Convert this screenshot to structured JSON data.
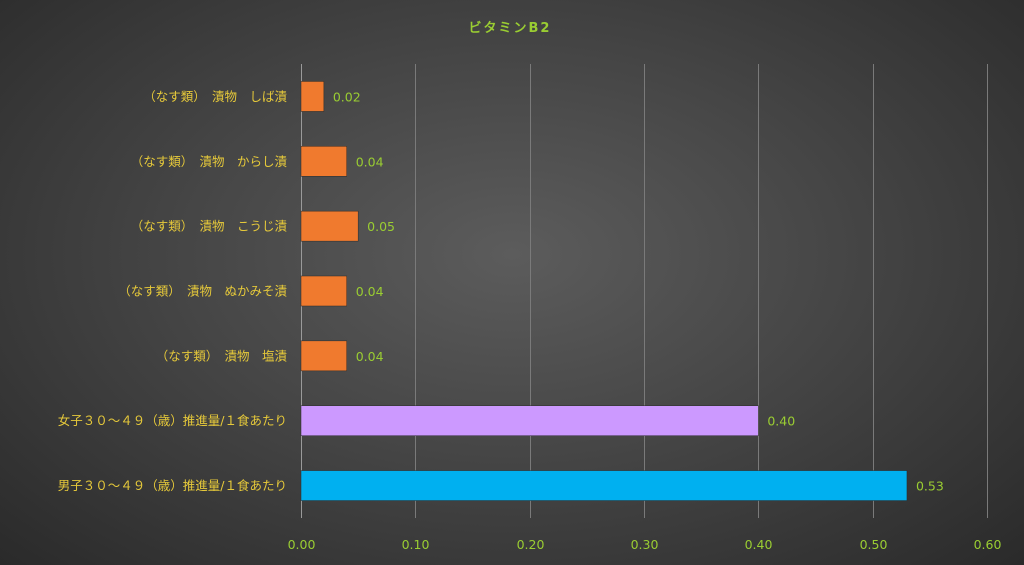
{
  "chart_data": {
    "type": "bar",
    "orientation": "horizontal",
    "title": "ビタミンB2",
    "categories": [
      "（なす類）　漬物　しば漬",
      "（なす類）　漬物　からし漬",
      "（なす類）　漬物　こうじ漬",
      "（なす類）　漬物　ぬかみそ漬",
      "（なす類）　漬物　塩漬",
      "女子３０～４９（歳）推進量/１食あたり",
      "男子３０～４９（歳）推進量/１食あたり"
    ],
    "values": [
      0.02,
      0.04,
      0.05,
      0.04,
      0.04,
      0.4,
      0.53
    ],
    "value_labels": [
      "0.02",
      "0.04",
      "0.05",
      "0.04",
      "0.04",
      "0.40",
      "0.53"
    ],
    "bar_colors": [
      "#F07A2E",
      "#F07A2E",
      "#F07A2E",
      "#F07A2E",
      "#F07A2E",
      "#CC99FF",
      "#00B0F0"
    ],
    "xlim": [
      0,
      0.6
    ],
    "xticks": [
      "0.00",
      "0.10",
      "0.20",
      "0.30",
      "0.40",
      "0.50",
      "0.60"
    ],
    "xtick_values": [
      0,
      0.1,
      0.2,
      0.3,
      0.4,
      0.5,
      0.6
    ],
    "grid": true,
    "legend": "none"
  }
}
